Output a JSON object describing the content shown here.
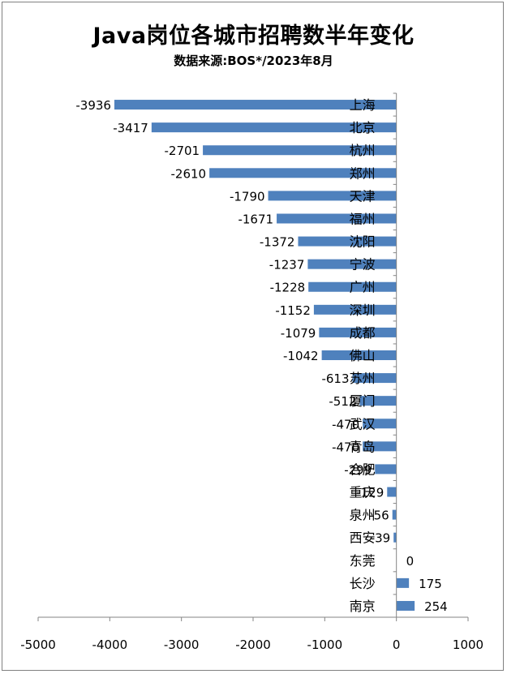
{
  "chart_data": {
    "type": "bar",
    "orientation": "horizontal",
    "title": "Java岗位各城市招聘数半年变化",
    "subtitle": "数据来源:BOS*/2023年8月",
    "categories": [
      "上海",
      "北京",
      "杭州",
      "郑州",
      "天津",
      "福州",
      "沈阳",
      "宁波",
      "广州",
      "深圳",
      "成都",
      "佛山",
      "苏州",
      "厦门",
      "武汉",
      "青岛",
      "合肥",
      "重庆",
      "泉州",
      "西安",
      "东莞",
      "长沙",
      "南京"
    ],
    "values": [
      -3936,
      -3417,
      -2701,
      -2610,
      -1790,
      -1671,
      -1372,
      -1237,
      -1228,
      -1152,
      -1079,
      -1042,
      -613,
      -512,
      -470,
      -470,
      -299,
      -129,
      -56,
      -39,
      0,
      175,
      254
    ],
    "xlim": [
      -5000,
      1000
    ],
    "xticks": [
      -5000,
      -4000,
      -3000,
      -2000,
      -1000,
      0,
      1000
    ],
    "bar_color": "#4f81bd",
    "grid": false,
    "legend": "none"
  }
}
